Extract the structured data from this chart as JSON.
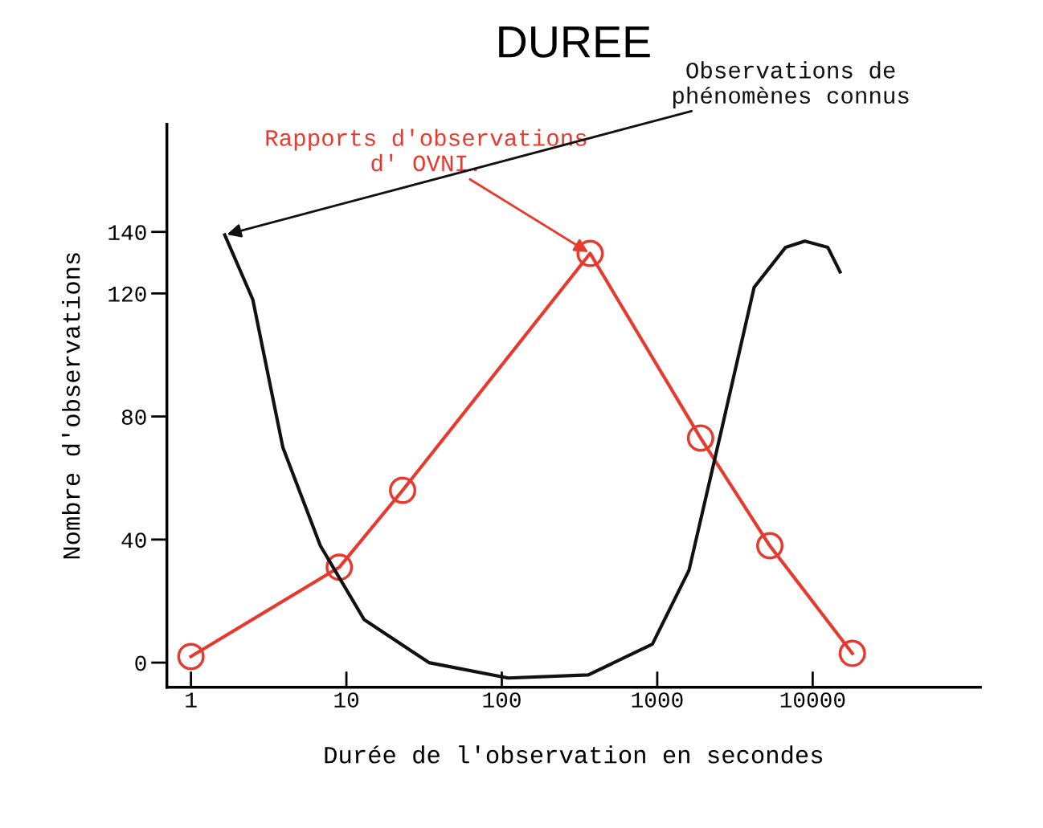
{
  "chart_data": {
    "type": "line",
    "title": "DUREE",
    "xlabel": "Durée de l'observation en secondes",
    "ylabel": "Nombre d'observations",
    "log": "x",
    "xlim": [
      0.7,
      120000
    ],
    "xticks": [
      1,
      10,
      100,
      1000,
      10000
    ],
    "ylim": [
      -8,
      175
    ],
    "yticks": [
      0,
      40,
      80,
      120,
      140
    ],
    "grid": false,
    "legend": false,
    "line_style": "solid",
    "series": [
      {
        "name": "Rapports d'observations\nd' OVNI.",
        "color": "#e8392e",
        "marker": "circle",
        "x": [
          1,
          9,
          23,
          370,
          1900,
          5300,
          18000
        ],
        "values": [
          2,
          31,
          56,
          133,
          73,
          38,
          3
        ]
      },
      {
        "name": "Observations de\nphénomènes connus",
        "color": "#111111",
        "marker": "none",
        "x": [
          1.65,
          2.5,
          3.9,
          6.8,
          13,
          34,
          110,
          360,
          930,
          1600,
          2600,
          4200,
          6700,
          8900,
          12500,
          15000
        ],
        "values": [
          139,
          118,
          70,
          38,
          14,
          0,
          -5,
          -4,
          6,
          30,
          76,
          122,
          135,
          137,
          135,
          127
        ]
      }
    ]
  }
}
